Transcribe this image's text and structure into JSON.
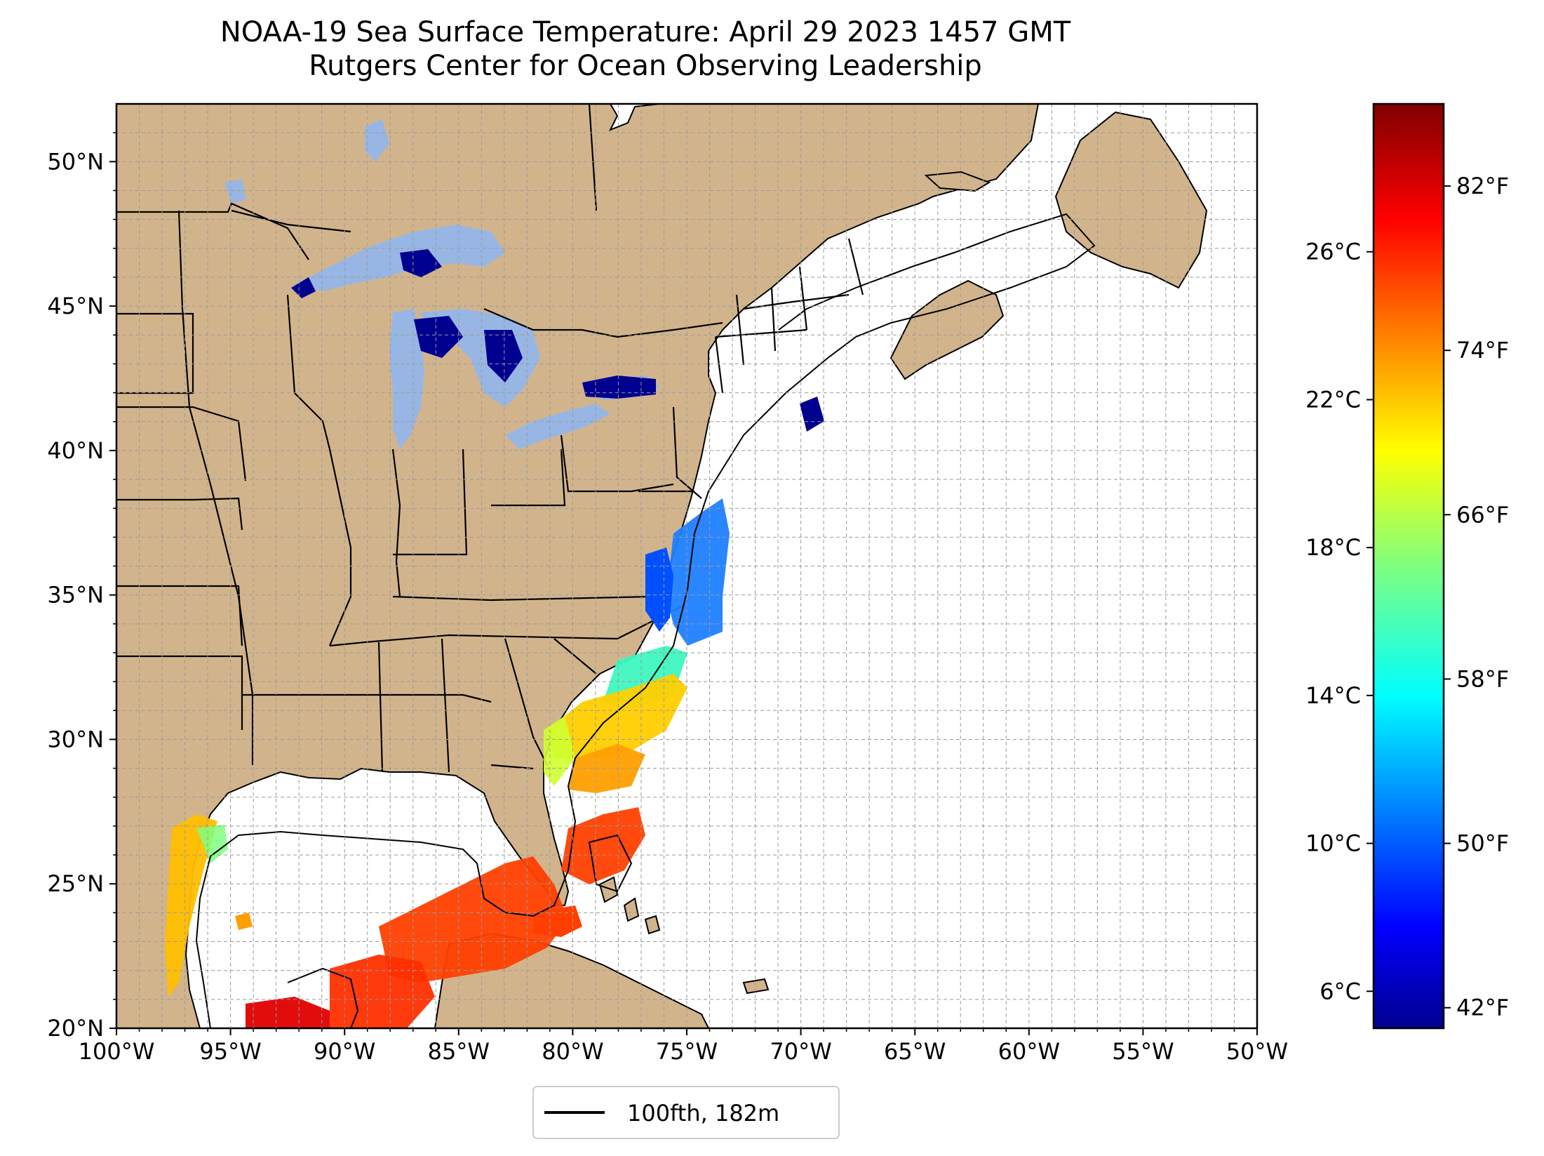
{
  "title": {
    "line1": "NOAA-19 Sea Surface Temperature: April 29 2023 1457 GMT",
    "line2": "Rutgers Center for Ocean Observing Leadership"
  },
  "map": {
    "lon_range": [
      -100,
      -50
    ],
    "lat_range": [
      20,
      52
    ],
    "lon_ticks": [
      "100°W",
      "95°W",
      "90°W",
      "85°W",
      "80°W",
      "75°W",
      "70°W",
      "65°W",
      "60°W",
      "55°W",
      "50°W"
    ],
    "lat_ticks": [
      "20°N",
      "25°N",
      "30°N",
      "35°N",
      "40°N",
      "45°N",
      "50°N"
    ],
    "gridlines": true,
    "land_color": "#d2b48c",
    "lake_color": "#98b6e4",
    "ocean_color": "#ffffff"
  },
  "colorbar": {
    "colormap": "jet",
    "celsius_range": [
      5,
      30
    ],
    "celsius_ticks": [
      "6°C",
      "10°C",
      "14°C",
      "18°C",
      "22°C",
      "26°C"
    ],
    "fahrenheit_ticks": [
      "42°F",
      "50°F",
      "58°F",
      "66°F",
      "74°F",
      "82°F"
    ]
  },
  "legend": {
    "label": "100fth, 182m",
    "line_color": "#000000"
  }
}
